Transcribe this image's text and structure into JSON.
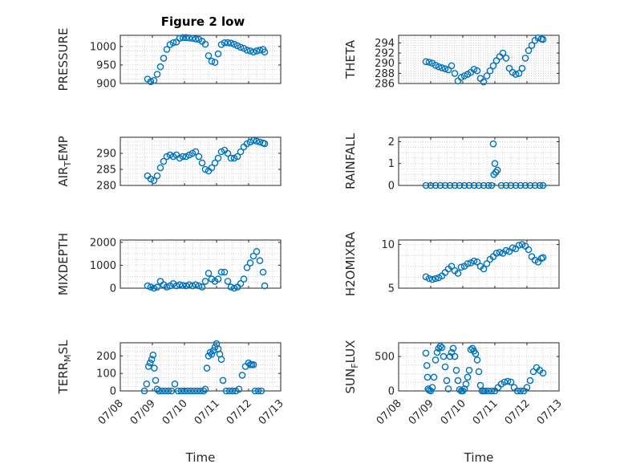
{
  "figure_title": "Figure 2 low",
  "colors": {
    "marker": "#0072BD",
    "axis": "#262626",
    "grid": "#bdbdbd"
  },
  "x_axis": {
    "label": "Time",
    "min": 0,
    "max": 5,
    "ticks": [
      0,
      1,
      2,
      3,
      4,
      5
    ],
    "tick_labels": [
      "07/08",
      "07/09",
      "07/10",
      "07/11",
      "07/12",
      "07/13"
    ]
  },
  "chart_data": [
    {
      "type": "scatter",
      "title": "Figure 2 low",
      "ylabel": "PRESSURE",
      "ylim": [
        900,
        1030
      ],
      "yticks": [
        900,
        950,
        1000
      ],
      "grid": true,
      "x": [
        0.85,
        0.95,
        1.05,
        1.15,
        1.25,
        1.35,
        1.45,
        1.55,
        1.65,
        1.75,
        1.85,
        1.95,
        2.05,
        2.15,
        2.25,
        2.35,
        2.45,
        2.55,
        2.65,
        2.75,
        2.85,
        2.95,
        3.05,
        3.15,
        3.25,
        3.35,
        3.45,
        3.55,
        3.65,
        3.75,
        3.85,
        3.95,
        4.05,
        4.15,
        4.25,
        4.35,
        4.45,
        4.5
      ],
      "y": [
        912,
        905,
        908,
        925,
        945,
        968,
        992,
        1005,
        1010,
        1012,
        1022,
        1024,
        1024,
        1023,
        1022,
        1020,
        1019,
        1014,
        1006,
        975,
        960,
        957,
        980,
        1005,
        1010,
        1010,
        1009,
        1006,
        1002,
        998,
        995,
        990,
        988,
        985,
        988,
        990,
        992,
        985
      ]
    },
    {
      "type": "scatter",
      "ylabel": "THETA",
      "ylim": [
        286,
        295.5
      ],
      "yticks": [
        286,
        288,
        290,
        292,
        294
      ],
      "grid": true,
      "x": [
        0.85,
        0.95,
        1.05,
        1.15,
        1.25,
        1.35,
        1.45,
        1.55,
        1.65,
        1.75,
        1.85,
        1.95,
        2.05,
        2.15,
        2.25,
        2.35,
        2.45,
        2.55,
        2.65,
        2.75,
        2.85,
        2.95,
        3.05,
        3.15,
        3.25,
        3.35,
        3.45,
        3.55,
        3.65,
        3.75,
        3.85,
        3.95,
        4.05,
        4.15,
        4.25,
        4.35,
        4.45,
        4.5
      ],
      "y": [
        290.3,
        290.2,
        290.0,
        289.6,
        289.3,
        289.1,
        288.9,
        288.7,
        289.5,
        288.0,
        286.5,
        287.2,
        287.5,
        287.8,
        288.2,
        288.8,
        288.5,
        287.0,
        286.3,
        287.5,
        288.5,
        289.5,
        290.5,
        291.3,
        292.0,
        291.0,
        289.0,
        288.2,
        287.8,
        288.0,
        289.0,
        291.0,
        292.5,
        293.5,
        294.5,
        295.0,
        294.8,
        294.7
      ]
    },
    {
      "type": "scatter",
      "ylabel": "AIR_TEMP",
      "ylim": [
        280,
        295
      ],
      "yticks": [
        280,
        285,
        290
      ],
      "grid": true,
      "x": [
        0.85,
        0.95,
        1.05,
        1.15,
        1.25,
        1.35,
        1.45,
        1.55,
        1.65,
        1.75,
        1.85,
        1.95,
        2.05,
        2.15,
        2.25,
        2.35,
        2.45,
        2.55,
        2.65,
        2.75,
        2.85,
        2.95,
        3.05,
        3.15,
        3.25,
        3.35,
        3.45,
        3.55,
        3.65,
        3.75,
        3.85,
        3.95,
        4.05,
        4.15,
        4.25,
        4.35,
        4.45,
        4.5
      ],
      "y": [
        283,
        282,
        281.5,
        283,
        285.5,
        287.5,
        289,
        289.5,
        289,
        289.5,
        288.5,
        289,
        289,
        289.5,
        290,
        290.5,
        289,
        287,
        285,
        284.5,
        285.5,
        287,
        288.5,
        290.5,
        291,
        290,
        288.5,
        288.5,
        289,
        290.5,
        292,
        293,
        293.5,
        294,
        293.8,
        293.5,
        293.2,
        293
      ]
    },
    {
      "type": "scatter",
      "ylabel": "RAINFALL",
      "ylim": [
        0,
        2.2
      ],
      "yticks": [
        0,
        1,
        2
      ],
      "grid": true,
      "x": [
        0.85,
        1.0,
        1.15,
        1.3,
        1.45,
        1.6,
        1.75,
        1.9,
        2.05,
        2.2,
        2.35,
        2.5,
        2.65,
        2.8,
        2.9,
        2.95,
        2.97,
        3.0,
        3.03,
        3.08,
        3.2,
        3.35,
        3.5,
        3.65,
        3.8,
        3.95,
        4.1,
        4.25,
        4.4,
        4.5
      ],
      "y": [
        0,
        0,
        0,
        0,
        0,
        0,
        0,
        0,
        0,
        0,
        0,
        0,
        0,
        0,
        0,
        1.9,
        0.5,
        1.0,
        0.6,
        0.7,
        0,
        0,
        0,
        0,
        0,
        0,
        0,
        0,
        0,
        0
      ]
    },
    {
      "type": "scatter",
      "ylabel": "MIXDEPTH",
      "ylim": [
        0,
        2100
      ],
      "yticks": [
        0,
        1000,
        2000
      ],
      "grid": true,
      "x": [
        0.85,
        0.95,
        1.05,
        1.15,
        1.25,
        1.35,
        1.45,
        1.55,
        1.65,
        1.75,
        1.85,
        1.95,
        2.05,
        2.15,
        2.25,
        2.35,
        2.45,
        2.55,
        2.65,
        2.75,
        2.85,
        2.95,
        3.05,
        3.15,
        3.25,
        3.35,
        3.45,
        3.55,
        3.65,
        3.75,
        3.85,
        3.95,
        4.05,
        4.15,
        4.25,
        4.35,
        4.45,
        4.5
      ],
      "y": [
        100,
        50,
        0,
        50,
        300,
        150,
        50,
        100,
        200,
        100,
        150,
        120,
        100,
        150,
        100,
        150,
        100,
        50,
        300,
        650,
        400,
        300,
        400,
        700,
        700,
        300,
        50,
        0,
        50,
        200,
        400,
        900,
        1100,
        1400,
        1600,
        1200,
        700,
        100
      ]
    },
    {
      "type": "scatter",
      "ylabel": "H2OMIXRA",
      "ylim": [
        5,
        10.5
      ],
      "yticks": [
        5,
        10
      ],
      "grid": true,
      "x": [
        0.85,
        0.95,
        1.05,
        1.15,
        1.25,
        1.35,
        1.45,
        1.55,
        1.65,
        1.75,
        1.85,
        1.95,
        2.05,
        2.15,
        2.25,
        2.35,
        2.45,
        2.55,
        2.65,
        2.75,
        2.85,
        2.95,
        3.05,
        3.15,
        3.25,
        3.35,
        3.45,
        3.55,
        3.65,
        3.75,
        3.85,
        3.95,
        4.05,
        4.15,
        4.25,
        4.35,
        4.45,
        4.5
      ],
      "y": [
        6.3,
        6.1,
        6.0,
        6.1,
        6.2,
        6.4,
        6.8,
        7.2,
        7.5,
        7.0,
        6.7,
        7.4,
        7.5,
        7.8,
        7.9,
        8.1,
        8.0,
        7.5,
        7.2,
        7.8,
        8.3,
        8.6,
        9.0,
        9.1,
        9.0,
        9.3,
        9.2,
        9.6,
        9.5,
        9.9,
        10.0,
        9.8,
        9.4,
        8.6,
        8.2,
        8.0,
        8.4,
        8.5
      ]
    },
    {
      "type": "scatter",
      "ylabel": "TERR_MSL",
      "ylim": [
        0,
        275
      ],
      "yticks": [
        0,
        100,
        200
      ],
      "grid": true,
      "x": [
        0.75,
        0.82,
        0.88,
        0.93,
        0.98,
        1.02,
        1.06,
        1.1,
        1.15,
        1.2,
        1.3,
        1.4,
        1.5,
        1.6,
        1.7,
        1.8,
        1.9,
        2.0,
        2.1,
        2.2,
        2.3,
        2.4,
        2.5,
        2.6,
        2.65,
        2.7,
        2.75,
        2.8,
        2.85,
        2.9,
        2.95,
        3.0,
        3.05,
        3.1,
        3.15,
        3.2,
        3.3,
        3.4,
        3.5,
        3.6,
        3.7,
        3.8,
        3.9,
        4.0,
        4.05,
        4.1,
        4.15,
        4.2,
        4.3,
        4.4
      ],
      "y": [
        0,
        40,
        140,
        160,
        180,
        205,
        130,
        60,
        10,
        0,
        0,
        0,
        0,
        0,
        40,
        0,
        0,
        0,
        0,
        0,
        0,
        0,
        0,
        0,
        10,
        130,
        200,
        220,
        210,
        230,
        250,
        270,
        240,
        210,
        180,
        60,
        0,
        0,
        0,
        0,
        10,
        90,
        140,
        160,
        150,
        150,
        150,
        0,
        0,
        0
      ]
    },
    {
      "type": "scatter",
      "ylabel": "SUN_FLUX",
      "ylim": [
        0,
        700
      ],
      "yticks": [
        0,
        500
      ],
      "grid": true,
      "x": [
        0.85,
        0.88,
        0.9,
        0.92,
        0.95,
        1.0,
        1.05,
        1.1,
        1.15,
        1.2,
        1.25,
        1.3,
        1.35,
        1.4,
        1.45,
        1.5,
        1.55,
        1.6,
        1.65,
        1.7,
        1.75,
        1.8,
        1.85,
        1.9,
        1.95,
        2.0,
        2.05,
        2.1,
        2.15,
        2.2,
        2.25,
        2.3,
        2.35,
        2.4,
        2.45,
        2.5,
        2.55,
        2.6,
        2.65,
        2.7,
        2.8,
        2.9,
        3.0,
        3.1,
        3.2,
        3.3,
        3.4,
        3.5,
        3.6,
        3.7,
        3.8,
        3.9,
        4.0,
        4.1,
        4.2,
        4.3,
        4.4,
        4.5
      ],
      "y": [
        550,
        370,
        200,
        30,
        10,
        0,
        50,
        200,
        450,
        560,
        620,
        650,
        630,
        500,
        350,
        150,
        30,
        500,
        560,
        620,
        500,
        300,
        150,
        20,
        0,
        0,
        30,
        100,
        200,
        300,
        600,
        620,
        580,
        540,
        450,
        280,
        80,
        0,
        0,
        0,
        0,
        0,
        0,
        50,
        100,
        130,
        140,
        130,
        50,
        0,
        0,
        0,
        50,
        150,
        280,
        340,
        300,
        260
      ]
    }
  ]
}
